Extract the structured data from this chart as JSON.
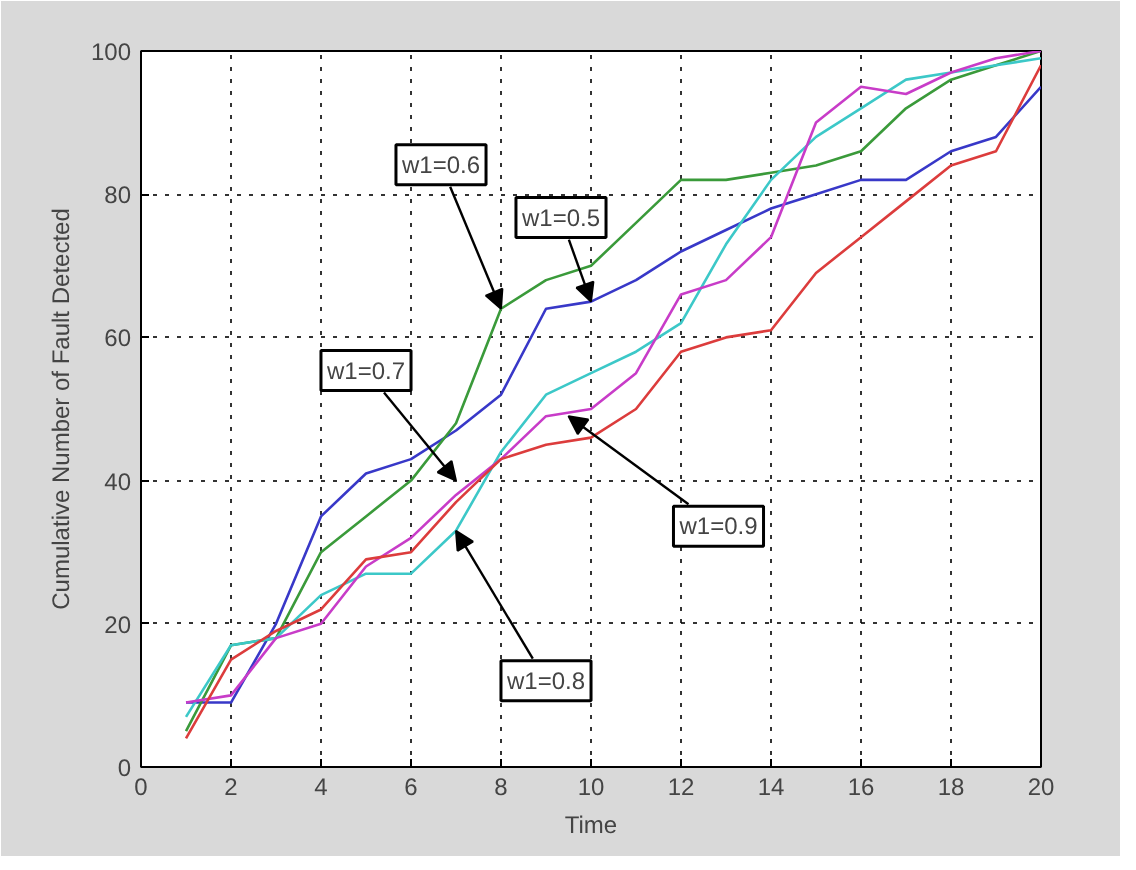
{
  "chart_data": {
    "type": "line",
    "xlabel": "Time",
    "ylabel": "Cumulative Number of Fault Detected",
    "x": [
      1,
      2,
      3,
      4,
      5,
      6,
      7,
      8,
      9,
      10,
      11,
      12,
      13,
      14,
      15,
      16,
      17,
      18,
      19,
      20
    ],
    "xlim": [
      0,
      20
    ],
    "xticks": [
      0,
      2,
      4,
      6,
      8,
      10,
      12,
      14,
      16,
      18,
      20
    ],
    "ylim": [
      0,
      100
    ],
    "yticks": [
      0,
      20,
      40,
      60,
      80,
      100
    ],
    "grid": true,
    "line_style": "solid",
    "series": [
      {
        "color": "#3838c8",
        "values": [
          9,
          9,
          20,
          35,
          41,
          43,
          47,
          52,
          64,
          65,
          68,
          72,
          75,
          78,
          80,
          82,
          82,
          86,
          88,
          95
        ]
      },
      {
        "color": "#3a9a3a",
        "values": [
          5,
          17,
          18,
          30,
          35,
          40,
          48,
          64,
          68,
          70,
          76,
          82,
          82,
          83,
          84,
          86,
          92,
          96,
          98,
          100
        ]
      },
      {
        "color": "#3cc8c8",
        "values": [
          7,
          17,
          18,
          24,
          27,
          27,
          33,
          44,
          52,
          55,
          58,
          62,
          73,
          82,
          88,
          92,
          96,
          97,
          98,
          99
        ]
      },
      {
        "color": "#c83cc8",
        "values": [
          9,
          10,
          18,
          20,
          28,
          32,
          38,
          43,
          49,
          50,
          55,
          66,
          68,
          74,
          90,
          95,
          94,
          97,
          99,
          100
        ]
      },
      {
        "color": "#dc3c3c",
        "values": [
          4,
          15,
          19,
          22,
          29,
          30,
          37,
          43,
          45,
          46,
          50,
          58,
          60,
          61,
          69,
          74,
          79,
          84,
          86,
          98
        ]
      }
    ],
    "annotations": [
      {
        "text": "w1=0.6",
        "x": 8,
        "y": 64
      },
      {
        "text": "w1=0.5",
        "x": 10,
        "y": 65
      },
      {
        "text": "w1=0.7",
        "x": 7,
        "y": 40
      },
      {
        "text": "w1=0.8",
        "x": 7,
        "y": 33
      },
      {
        "text": "w1=0.9",
        "x": 9.5,
        "y": 49
      }
    ]
  }
}
